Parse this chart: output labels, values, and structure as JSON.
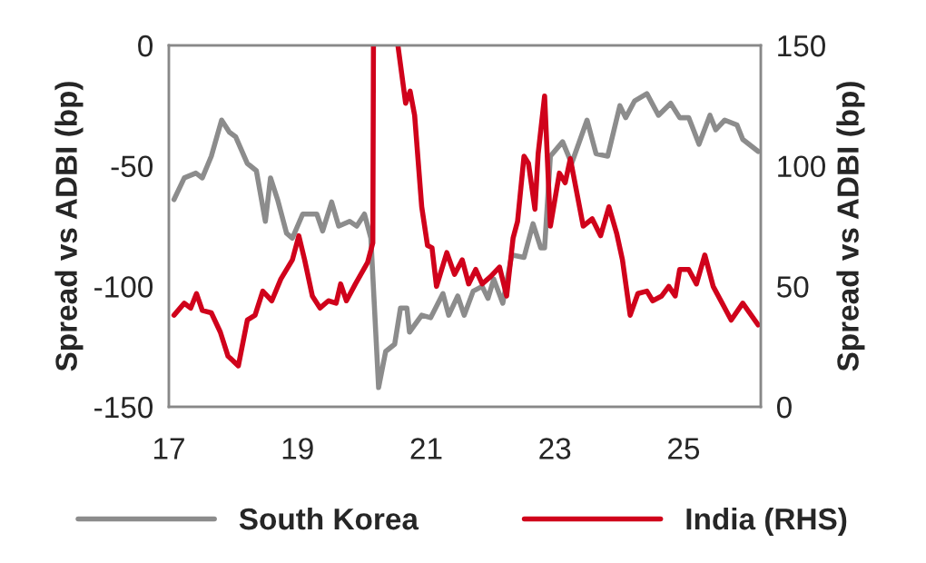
{
  "chart_data": {
    "type": "line",
    "ylabel": "Spread vs ADBI (bp)",
    "y2label": "Spread vs ADBI (bp)",
    "xlim": [
      17,
      26.2
    ],
    "xticks": [
      17,
      19,
      21,
      23,
      25
    ],
    "ylim": [
      -150,
      0
    ],
    "yticks": [
      -150,
      -100,
      -50,
      0
    ],
    "y2lim": [
      0,
      150
    ],
    "y2ticks": [
      0,
      50,
      100,
      150
    ],
    "grid": false,
    "legend": "bottom",
    "marker": "none",
    "line_style": "solid",
    "series": [
      {
        "name": "South Korea",
        "color": "#8c8c8c",
        "x": [
          17.08,
          17.24,
          17.42,
          17.52,
          17.66,
          17.82,
          17.94,
          18.04,
          18.22,
          18.36,
          18.5,
          18.58,
          18.69,
          18.83,
          18.92,
          19.08,
          19.3,
          19.39,
          19.53,
          19.64,
          19.81,
          19.92,
          20.04,
          20.14,
          20.26,
          20.37,
          20.51,
          20.6,
          20.7,
          20.74,
          20.93,
          21.07,
          21.26,
          21.35,
          21.49,
          21.59,
          21.73,
          21.87,
          21.96,
          22.05,
          22.19,
          22.33,
          22.52,
          22.66,
          22.78,
          22.84,
          22.93,
          23.12,
          23.26,
          23.5,
          23.64,
          23.82,
          24.01,
          24.1,
          24.24,
          24.43,
          24.61,
          24.8,
          24.94,
          25.08,
          25.24,
          25.41,
          25.5,
          25.64,
          25.83,
          25.92,
          26.16
        ],
        "values": [
          -64,
          -55,
          -53,
          -55,
          -46,
          -31,
          -36,
          -38,
          -49,
          -52,
          -73,
          -55,
          -64,
          -78,
          -80,
          -70,
          -70,
          -77,
          -65,
          -75,
          -73,
          -75,
          -70,
          -80,
          -142,
          -127,
          -124,
          -109,
          -109,
          -119,
          -112,
          -113,
          -103,
          -112,
          -104,
          -112,
          -102,
          -100,
          -105,
          -97,
          -107,
          -87,
          -88,
          -74,
          -84,
          -84,
          -46,
          -40,
          -49,
          -31,
          -45,
          -46,
          -25,
          -30,
          -23,
          -20,
          -29,
          -24,
          -30,
          -30,
          -41,
          -29,
          -35,
          -31,
          -33,
          -39,
          -44
        ]
      },
      {
        "name": "India (RHS)",
        "color": "#d0021b",
        "axis": "y2",
        "x": [
          17.08,
          17.24,
          17.34,
          17.43,
          17.52,
          17.66,
          17.8,
          17.92,
          18.08,
          18.22,
          18.34,
          18.46,
          18.6,
          18.74,
          18.92,
          19.02,
          19.11,
          19.23,
          19.35,
          19.48,
          19.6,
          19.67,
          19.76,
          19.9,
          20.09,
          20.17,
          20.18,
          20.37,
          20.56,
          20.68,
          20.75,
          20.82,
          20.93,
          21.02,
          21.09,
          21.16,
          21.32,
          21.44,
          21.56,
          21.66,
          21.77,
          21.87,
          22.0,
          22.14,
          22.25,
          22.35,
          22.42,
          22.52,
          22.59,
          22.69,
          22.74,
          22.84,
          22.93,
          23.07,
          23.16,
          23.24,
          23.44,
          23.58,
          23.71,
          23.84,
          23.96,
          24.05,
          24.17,
          24.29,
          24.43,
          24.52,
          24.66,
          24.77,
          24.87,
          24.94,
          25.08,
          25.2,
          25.33,
          25.46,
          25.6,
          25.74,
          25.92,
          26.16
        ],
        "values": [
          38,
          43,
          41,
          47,
          40,
          39,
          31,
          21,
          17,
          36,
          38,
          48,
          44,
          53,
          61,
          71,
          61,
          46,
          41,
          44,
          43,
          51,
          44,
          51,
          60,
          68,
          150,
          null,
          150,
          126,
          131,
          121,
          83,
          67,
          66,
          50,
          64,
          55,
          61,
          51,
          57,
          51,
          54,
          58,
          46,
          70,
          77,
          104,
          101,
          82,
          105,
          129,
          75,
          97,
          93,
          103,
          75,
          78,
          71,
          83,
          72,
          61,
          38,
          47,
          48,
          44,
          46,
          50,
          46,
          57,
          57,
          51,
          63,
          50,
          43,
          36,
          43,
          34
        ]
      }
    ]
  }
}
